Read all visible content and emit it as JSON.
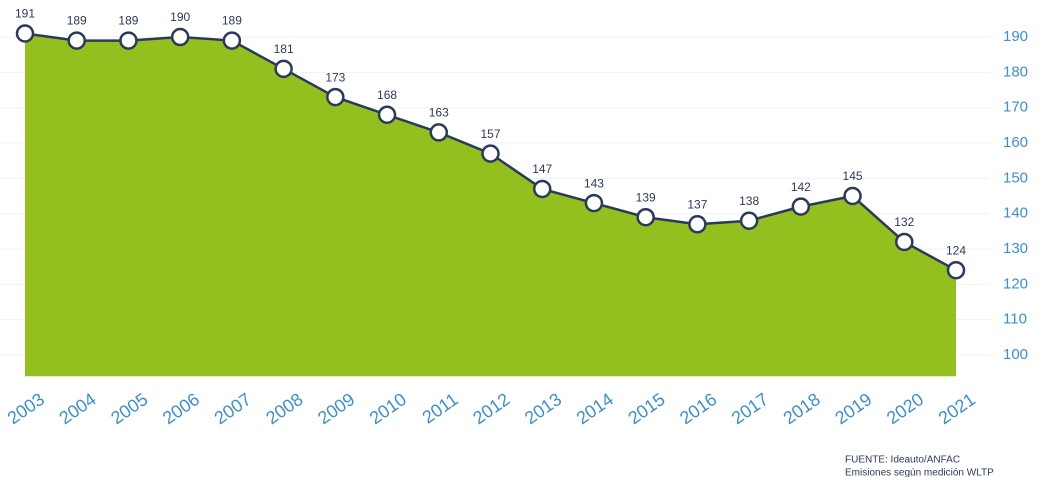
{
  "chart_data": {
    "type": "area",
    "categories": [
      "2003",
      "2004",
      "2005",
      "2006",
      "2007",
      "2008",
      "2009",
      "2010",
      "2011",
      "2012",
      "2013",
      "2014",
      "2015",
      "2016",
      "2017",
      "2018",
      "2019",
      "2020",
      "2021"
    ],
    "values": [
      191,
      189,
      189,
      190,
      189,
      181,
      173,
      168,
      163,
      157,
      147,
      143,
      139,
      137,
      138,
      142,
      145,
      132,
      124
    ],
    "color": "#93bf1f",
    "line_color": "#2b3a5c",
    "ylim": [
      94,
      200
    ],
    "yticks": [
      100,
      110,
      120,
      130,
      140,
      150,
      160,
      170,
      180,
      190
    ],
    "grid": true,
    "annotations": [
      "FUENTE: Ideauto/ANFAC",
      "Emisiones según medición WLTP"
    ]
  }
}
